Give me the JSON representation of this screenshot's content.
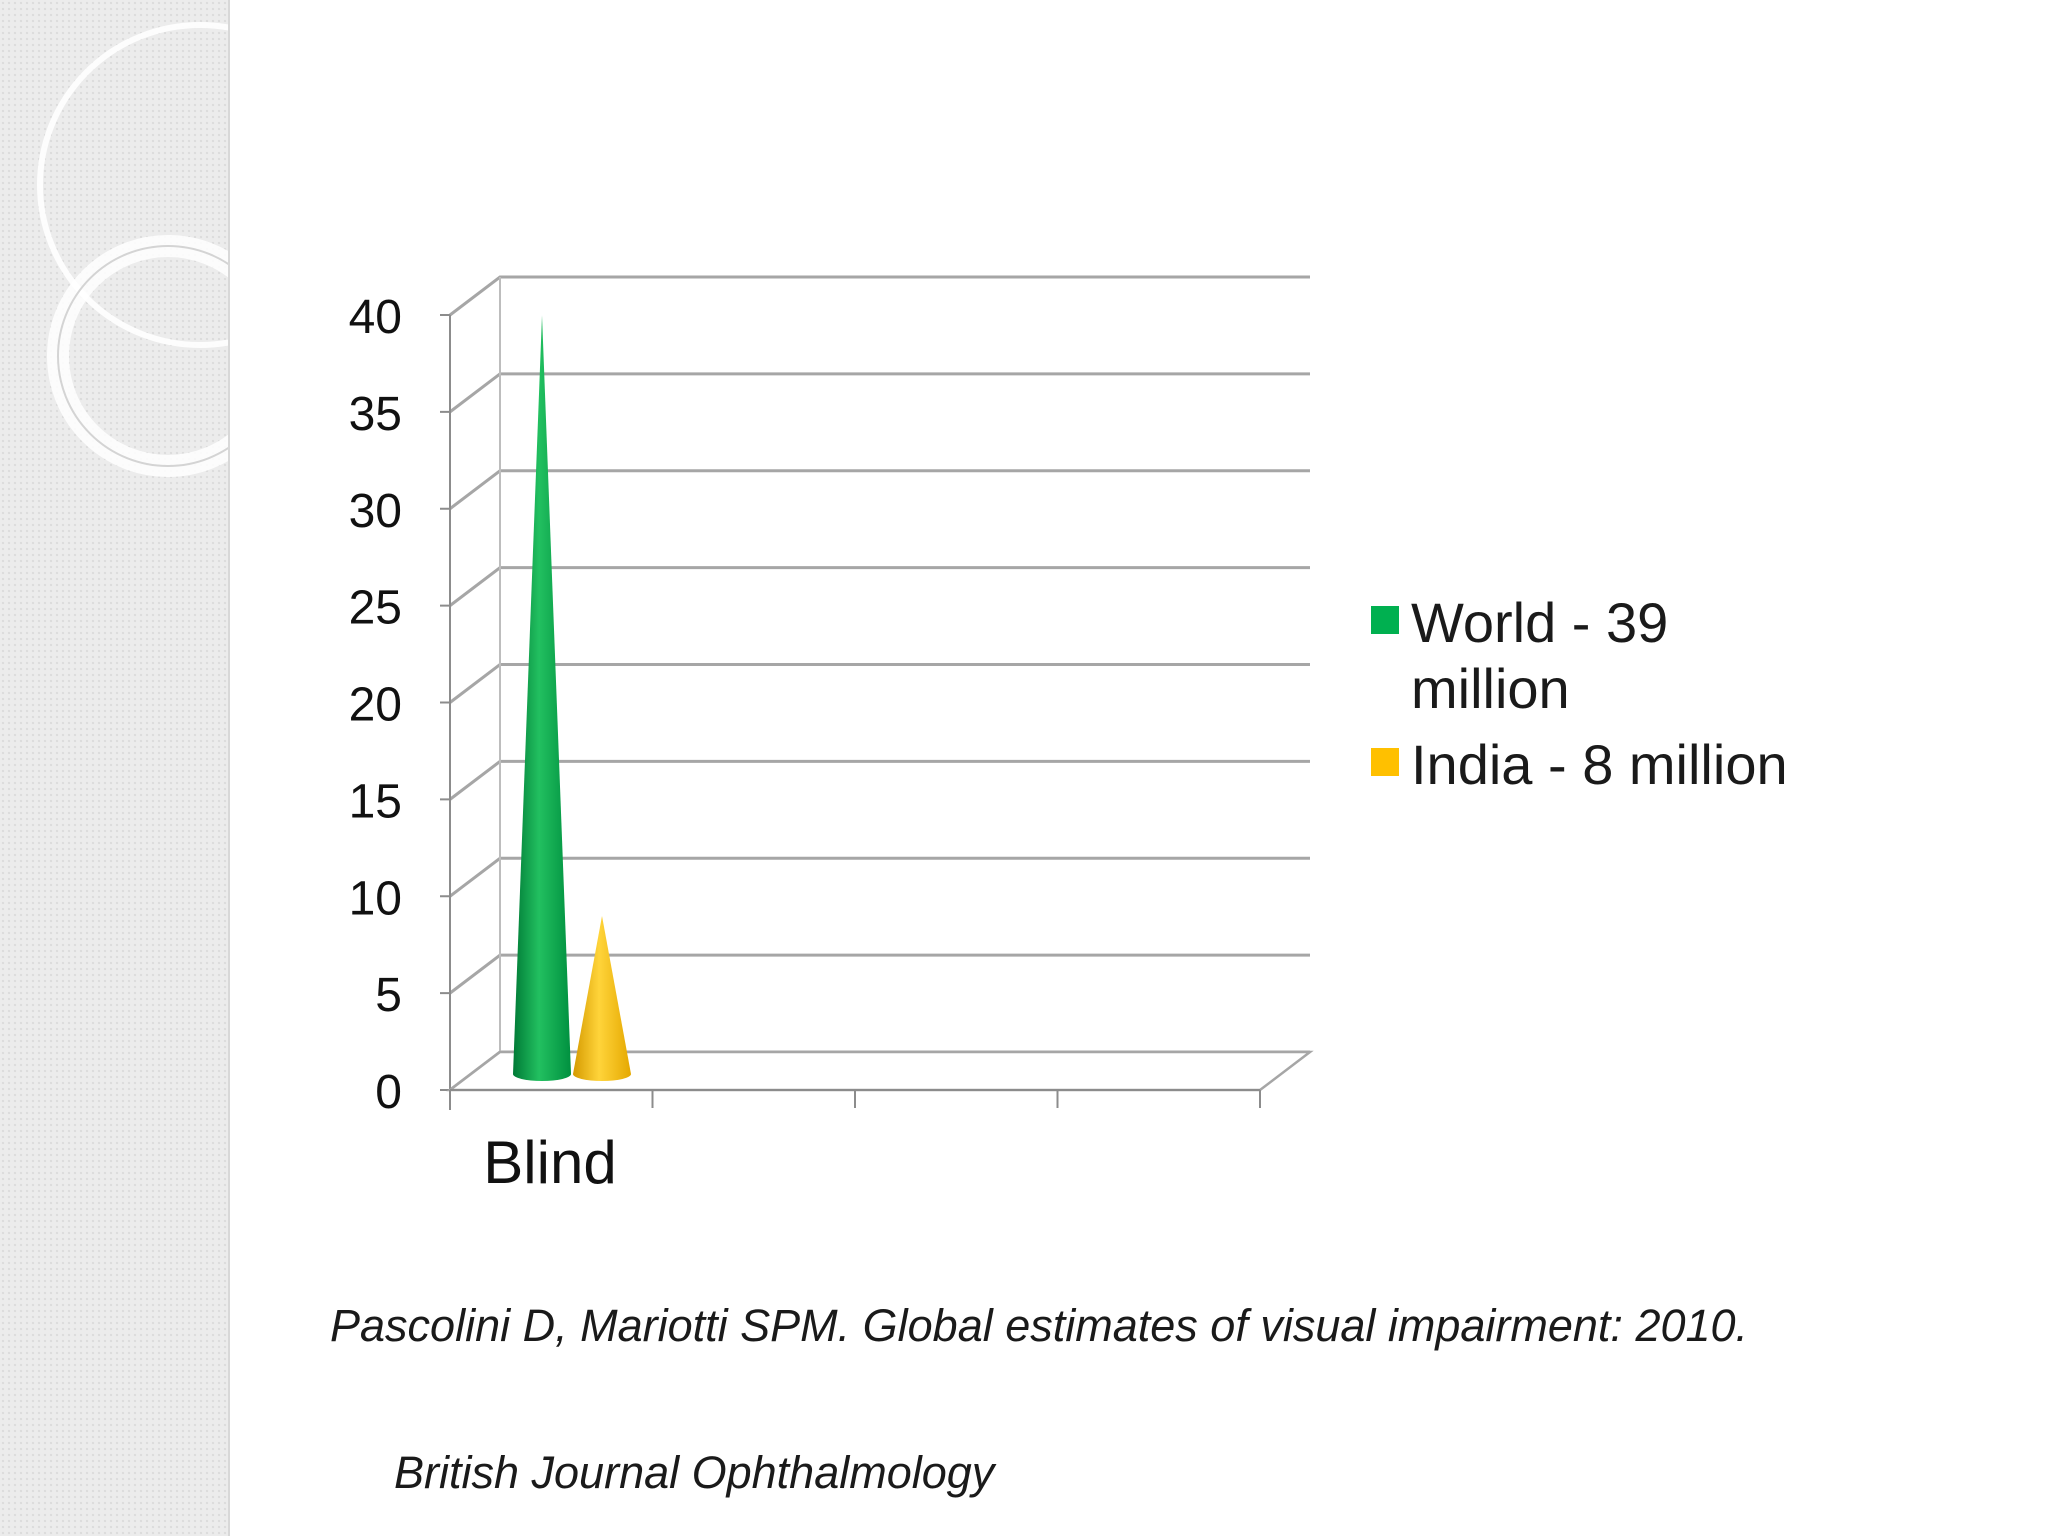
{
  "chart_data": {
    "type": "bar",
    "style": "3d-cone",
    "categories": [
      "Blind"
    ],
    "series": [
      {
        "name": "World - 39 million",
        "values": [
          39
        ],
        "color": "#00b050"
      },
      {
        "name": "India - 8 million",
        "values": [
          8
        ],
        "color": "#ffc000"
      }
    ],
    "ylim": [
      0,
      40
    ],
    "yticks": [
      "0",
      "5",
      "10",
      "15",
      "20",
      "25",
      "30",
      "35",
      "40"
    ],
    "grid": true,
    "legend": "right"
  },
  "citation": {
    "line1": "Pascolini D, Mariotti SPM. Global estimates of visual impairment: 2010.",
    "line2": "British Journal Ophthalmology"
  }
}
